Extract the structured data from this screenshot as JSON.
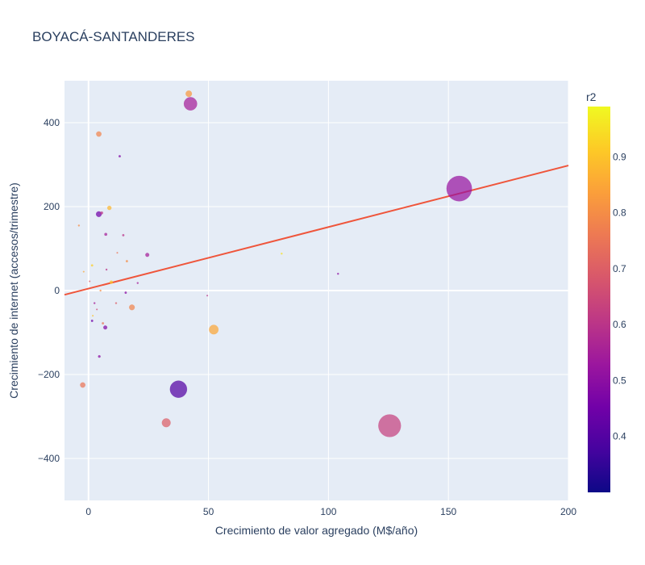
{
  "chart_data": {
    "type": "scatter",
    "title": "BOYACÁ-SANTANDERES",
    "xlabel": "Crecimiento de valor agregado (M$/año)",
    "ylabel": "Crecimiento de internet (accesos/trimestre)",
    "xlim": [
      -10,
      200
    ],
    "ylim": [
      -500,
      500
    ],
    "xticks": [
      0,
      50,
      100,
      150,
      200
    ],
    "yticks": [
      -400,
      -200,
      0,
      200,
      400
    ],
    "xtick_labels": [
      "0",
      "50",
      "100",
      "150",
      "200"
    ],
    "ytick_labels": [
      "−400",
      "−200",
      "0",
      "200",
      "400"
    ],
    "grid": true,
    "colorbar": {
      "title": "r2",
      "range": [
        0.3,
        0.99
      ],
      "ticks": [
        0.4,
        0.5,
        0.6,
        0.7,
        0.8,
        0.9
      ],
      "tick_labels": [
        "0.4",
        "0.5",
        "0.6",
        "0.7",
        "0.8",
        "0.9"
      ],
      "colorscale": [
        "#0d0887",
        "#46039f",
        "#7201a8",
        "#9c179e",
        "#bd3786",
        "#d8576b",
        "#ed7953",
        "#fb9f3a",
        "#fdca26",
        "#f0f921"
      ]
    },
    "trendline": {
      "x": [
        -10,
        200
      ],
      "y": [
        -10,
        298
      ],
      "color": "#ef553b"
    },
    "points": [
      {
        "x": 154.5,
        "y": 243,
        "size": 7.3,
        "r2": 0.52
      },
      {
        "x": 125.5,
        "y": -322,
        "size": 6.5,
        "r2": 0.63
      },
      {
        "x": 37.5,
        "y": -235,
        "size": 4.9,
        "r2": 0.4
      },
      {
        "x": 42.5,
        "y": 445,
        "size": 3.8,
        "r2": 0.55
      },
      {
        "x": 52.2,
        "y": -93,
        "size": 2.7,
        "r2": 0.85
      },
      {
        "x": 32.4,
        "y": -315,
        "size": 2.5,
        "r2": 0.7
      },
      {
        "x": 41.8,
        "y": 469,
        "size": 1.8,
        "r2": 0.82
      },
      {
        "x": 18.1,
        "y": -40,
        "size": 1.6,
        "r2": 0.78
      },
      {
        "x": -2.4,
        "y": -225,
        "size": 1.5,
        "r2": 0.75
      },
      {
        "x": 4.3,
        "y": 373,
        "size": 1.5,
        "r2": 0.78
      },
      {
        "x": 4.3,
        "y": 182,
        "size": 1.6,
        "r2": 0.45
      },
      {
        "x": 8.7,
        "y": 197,
        "size": 1.2,
        "r2": 0.88
      },
      {
        "x": 7.0,
        "y": -88,
        "size": 1.1,
        "r2": 0.48
      },
      {
        "x": 24.5,
        "y": 85,
        "size": 1.1,
        "r2": 0.55
      },
      {
        "x": 5.5,
        "y": 185,
        "size": 0.8,
        "r2": 0.6
      },
      {
        "x": 7.2,
        "y": 134,
        "size": 0.8,
        "r2": 0.55
      },
      {
        "x": 4.5,
        "y": -157,
        "size": 0.7,
        "r2": 0.5
      },
      {
        "x": 13.0,
        "y": 320,
        "size": 0.6,
        "r2": 0.48
      },
      {
        "x": 14.5,
        "y": 132,
        "size": 0.6,
        "r2": 0.6
      },
      {
        "x": 9.5,
        "y": 20,
        "size": 0.9,
        "r2": 0.9
      },
      {
        "x": 16.0,
        "y": 70,
        "size": 0.6,
        "r2": 0.8
      },
      {
        "x": 15.5,
        "y": -5,
        "size": 0.6,
        "r2": 0.5
      },
      {
        "x": 6.0,
        "y": -78,
        "size": 0.6,
        "r2": 0.75
      },
      {
        "x": 1.5,
        "y": -72,
        "size": 0.6,
        "r2": 0.45
      },
      {
        "x": 1.5,
        "y": 60,
        "size": 0.6,
        "r2": 0.92
      },
      {
        "x": 7.5,
        "y": 50,
        "size": 0.5,
        "r2": 0.6
      },
      {
        "x": 5.0,
        "y": 0,
        "size": 0.5,
        "r2": 0.8
      },
      {
        "x": 2.5,
        "y": -30,
        "size": 0.5,
        "r2": 0.55
      },
      {
        "x": 11.5,
        "y": -30,
        "size": 0.5,
        "r2": 0.7
      },
      {
        "x": 20.5,
        "y": 18,
        "size": 0.5,
        "r2": 0.55
      },
      {
        "x": -4.0,
        "y": 155,
        "size": 0.5,
        "r2": 0.8
      },
      {
        "x": 80.5,
        "y": 88,
        "size": 0.5,
        "r2": 0.95
      },
      {
        "x": 104.0,
        "y": 40,
        "size": 0.5,
        "r2": 0.5
      },
      {
        "x": 49.5,
        "y": -12,
        "size": 0.4,
        "r2": 0.6
      },
      {
        "x": 0.5,
        "y": 22,
        "size": 0.4,
        "r2": 0.7
      },
      {
        "x": -2.0,
        "y": 45,
        "size": 0.4,
        "r2": 0.85
      },
      {
        "x": 3.5,
        "y": -45,
        "size": 0.4,
        "r2": 0.65
      },
      {
        "x": 12.0,
        "y": 90,
        "size": 0.4,
        "r2": 0.75
      },
      {
        "x": 1.8,
        "y": -60,
        "size": 0.4,
        "r2": 0.9
      }
    ]
  }
}
